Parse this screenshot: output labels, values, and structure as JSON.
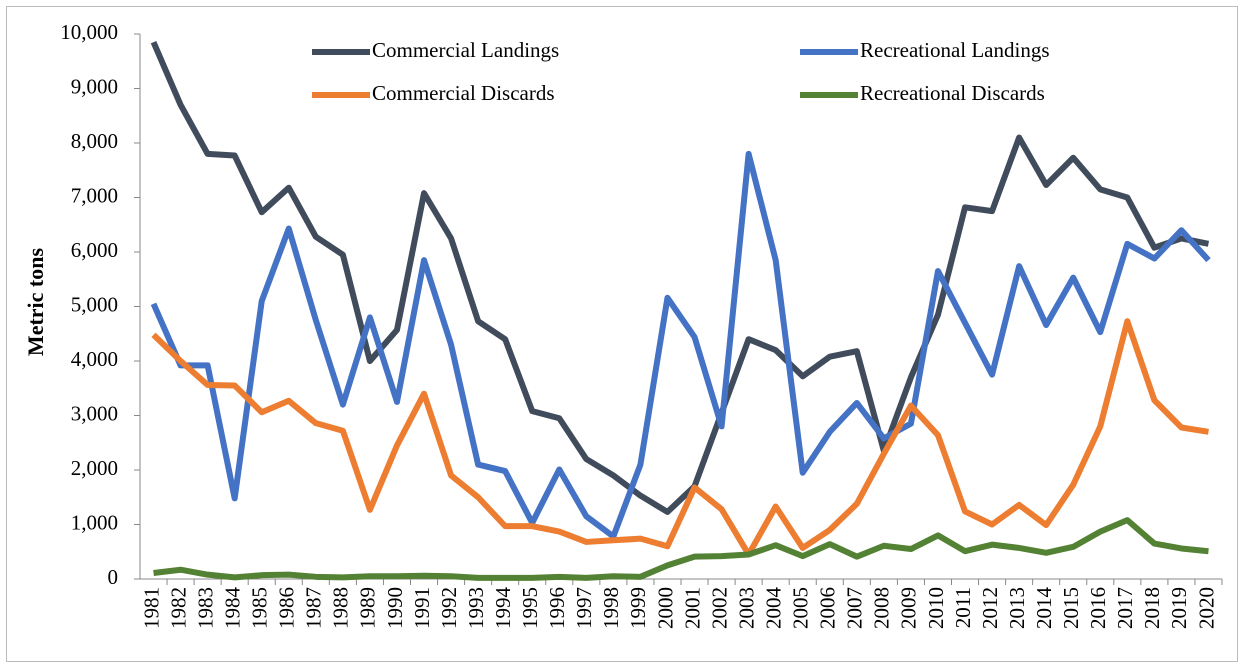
{
  "chart_data": {
    "type": "line",
    "y_label": "Metric tons",
    "categories": [
      "1981",
      "1982",
      "1983",
      "1984",
      "1985",
      "1986",
      "1987",
      "1988",
      "1989",
      "1990",
      "1991",
      "1992",
      "1993",
      "1994",
      "1995",
      "1996",
      "1997",
      "1998",
      "1999",
      "2000",
      "2001",
      "2002",
      "2003",
      "2004",
      "2005",
      "2006",
      "2007",
      "2008",
      "2009",
      "2010",
      "2011",
      "2012",
      "2013",
      "2014",
      "2015",
      "2016",
      "2017",
      "2018",
      "2019",
      "2020"
    ],
    "series": [
      {
        "name": "Commercial Landings",
        "color": "#404b5c",
        "values": [
          9850,
          8700,
          7800,
          7770,
          6730,
          7180,
          6280,
          5950,
          4000,
          4570,
          7080,
          6250,
          4730,
          4400,
          3080,
          2950,
          2200,
          1900,
          1530,
          1230,
          1700,
          3050,
          4400,
          4200,
          3720,
          4080,
          4180,
          2350,
          3700,
          4850,
          6820,
          6750,
          8100,
          7230,
          7730,
          7150,
          7000,
          6080,
          6250,
          6150
        ]
      },
      {
        "name": "Recreational Landings",
        "color": "#4472c4",
        "values": [
          5050,
          3920,
          3920,
          1480,
          5100,
          6430,
          4750,
          3200,
          4800,
          3250,
          5850,
          4300,
          2100,
          1980,
          1030,
          2010,
          1150,
          780,
          2100,
          5160,
          4440,
          2800,
          7800,
          5850,
          1950,
          2700,
          3230,
          2580,
          2850,
          5650,
          4700,
          3750,
          5740,
          4660,
          5530,
          4530,
          6150,
          5880,
          6400,
          5850
        ]
      },
      {
        "name": "Commercial Discards",
        "color": "#ed7d31",
        "values": [
          4480,
          4000,
          3560,
          3550,
          3060,
          3270,
          2860,
          2720,
          1270,
          2450,
          3400,
          1900,
          1500,
          970,
          970,
          870,
          680,
          710,
          740,
          600,
          1680,
          1280,
          450,
          1330,
          570,
          900,
          1380,
          2300,
          3180,
          2640,
          1240,
          1000,
          1360,
          990,
          1730,
          2800,
          4730,
          3280,
          2780,
          2700
        ]
      },
      {
        "name": "Recreational Discards",
        "color": "#548235",
        "values": [
          110,
          170,
          80,
          30,
          70,
          80,
          40,
          30,
          50,
          50,
          60,
          50,
          20,
          20,
          20,
          40,
          20,
          50,
          40,
          250,
          410,
          420,
          450,
          620,
          420,
          640,
          410,
          610,
          550,
          800,
          510,
          630,
          570,
          480,
          590,
          870,
          1080,
          650,
          560,
          510
        ]
      }
    ],
    "ylim": [
      0,
      10000
    ],
    "yticks": [
      0,
      {
        "value": 1000,
        "label": "1,000"
      },
      {
        "value": 2000,
        "label": "2,000"
      },
      {
        "value": 3000,
        "label": "3,000"
      },
      {
        "value": 4000,
        "label": "4,000"
      },
      {
        "value": 5000,
        "label": "5,000"
      },
      {
        "value": 6000,
        "label": "6,000"
      },
      {
        "value": 7000,
        "label": "7,000"
      },
      {
        "value": 8000,
        "label": "8,000"
      },
      {
        "value": 9000,
        "label": "9,000"
      },
      {
        "value": 10000,
        "label": "10,000"
      }
    ],
    "grid": false,
    "legend": "top"
  }
}
